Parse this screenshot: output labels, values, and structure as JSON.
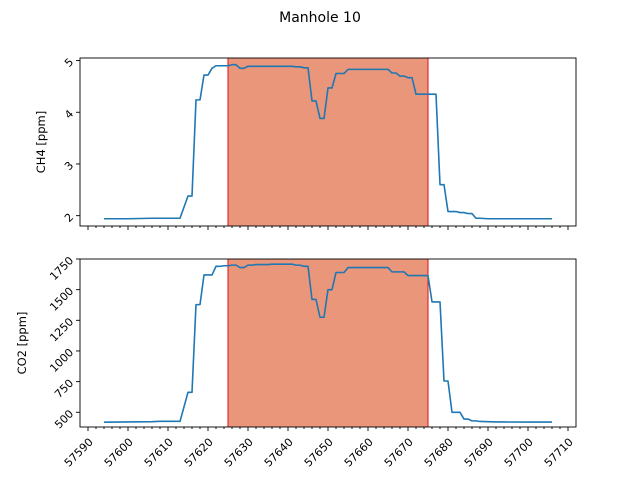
{
  "title": "Manhole 10",
  "chart_data": [
    {
      "type": "line",
      "ylabel": "CH4 [ppm]",
      "xlim": [
        57588,
        57712
      ],
      "ylim": [
        1.8,
        5.05
      ],
      "yticks": [
        2,
        3,
        4,
        5
      ],
      "show_xtick_labels": false,
      "highlight_span": [
        57625,
        57675
      ],
      "series": [
        {
          "x": [
            57594,
            57600,
            57606,
            57608,
            57612,
            57613,
            57615,
            57616,
            57617,
            57618,
            57619,
            57620,
            57621,
            57622,
            57623,
            57624,
            57625,
            57626,
            57627,
            57628,
            57629,
            57630,
            57631,
            57632,
            57633,
            57634,
            57635,
            57636,
            57637,
            57638,
            57639,
            57640,
            57641,
            57642,
            57643,
            57644,
            57645,
            57646,
            57647,
            57648,
            57649,
            57650,
            57651,
            57652,
            57653,
            57654,
            57655,
            57656,
            57657,
            57658,
            57659,
            57660,
            57661,
            57662,
            57663,
            57664,
            57665,
            57666,
            57667,
            57668,
            57669,
            57670,
            57671,
            57672,
            57673,
            57674,
            57675,
            57676,
            57677,
            57678,
            57679,
            57680,
            57681,
            57682,
            57683,
            57684,
            57685,
            57686,
            57687,
            57688,
            57690,
            57692,
            57694,
            57700,
            57706
          ],
          "values": [
            1.94,
            1.94,
            1.95,
            1.95,
            1.95,
            1.95,
            2.38,
            2.38,
            4.24,
            4.24,
            4.72,
            4.72,
            4.85,
            4.9,
            4.9,
            4.9,
            4.9,
            4.92,
            4.92,
            4.85,
            4.85,
            4.89,
            4.89,
            4.89,
            4.89,
            4.89,
            4.89,
            4.89,
            4.89,
            4.89,
            4.89,
            4.89,
            4.89,
            4.88,
            4.88,
            4.86,
            4.86,
            4.22,
            4.22,
            3.88,
            3.88,
            4.47,
            4.47,
            4.75,
            4.75,
            4.75,
            4.83,
            4.83,
            4.83,
            4.83,
            4.83,
            4.83,
            4.83,
            4.83,
            4.83,
            4.83,
            4.83,
            4.76,
            4.76,
            4.7,
            4.7,
            4.67,
            4.67,
            4.35,
            4.35,
            4.35,
            4.35,
            4.35,
            4.35,
            2.6,
            2.6,
            2.08,
            2.08,
            2.08,
            2.06,
            2.06,
            2.04,
            2.04,
            1.95,
            1.95,
            1.94,
            1.94,
            1.94,
            1.94,
            1.94
          ]
        }
      ]
    },
    {
      "type": "line",
      "ylabel": "CO2 [ppm]",
      "xlim": [
        57588,
        57712
      ],
      "ylim": [
        380,
        1750
      ],
      "yticks": [
        500,
        750,
        1000,
        1250,
        1500,
        1750
      ],
      "xticks": [
        57590,
        57600,
        57610,
        57620,
        57630,
        57640,
        57650,
        57660,
        57670,
        57680,
        57690,
        57700,
        57710
      ],
      "highlight_span": [
        57625,
        57675
      ],
      "series": [
        {
          "x": [
            57594,
            57600,
            57606,
            57608,
            57612,
            57613,
            57615,
            57616,
            57617,
            57618,
            57619,
            57620,
            57621,
            57622,
            57623,
            57624,
            57625,
            57626,
            57627,
            57628,
            57629,
            57630,
            57631,
            57632,
            57633,
            57634,
            57635,
            57636,
            57637,
            57638,
            57639,
            57640,
            57641,
            57642,
            57643,
            57644,
            57645,
            57646,
            57647,
            57648,
            57649,
            57650,
            57651,
            57652,
            57653,
            57654,
            57655,
            57656,
            57657,
            57658,
            57659,
            57660,
            57661,
            57662,
            57663,
            57664,
            57665,
            57666,
            57667,
            57668,
            57669,
            57670,
            57671,
            57672,
            57673,
            57674,
            57675,
            57676,
            57677,
            57678,
            57679,
            57680,
            57681,
            57682,
            57683,
            57684,
            57685,
            57686,
            57687,
            57688,
            57690,
            57692,
            57694,
            57700,
            57706
          ],
          "values": [
            419,
            421,
            423,
            426,
            426,
            426,
            663,
            663,
            1378,
            1378,
            1620,
            1620,
            1620,
            1690,
            1690,
            1695,
            1695,
            1700,
            1700,
            1680,
            1680,
            1700,
            1700,
            1705,
            1705,
            1705,
            1705,
            1708,
            1708,
            1708,
            1708,
            1708,
            1708,
            1700,
            1700,
            1690,
            1690,
            1420,
            1420,
            1275,
            1275,
            1500,
            1500,
            1640,
            1640,
            1640,
            1680,
            1680,
            1680,
            1680,
            1680,
            1680,
            1680,
            1680,
            1680,
            1680,
            1680,
            1645,
            1645,
            1645,
            1645,
            1615,
            1615,
            1615,
            1615,
            1615,
            1615,
            1400,
            1400,
            1400,
            755,
            755,
            500,
            500,
            500,
            445,
            445,
            430,
            430,
            425,
            423,
            421,
            421,
            420,
            420
          ]
        }
      ]
    }
  ]
}
